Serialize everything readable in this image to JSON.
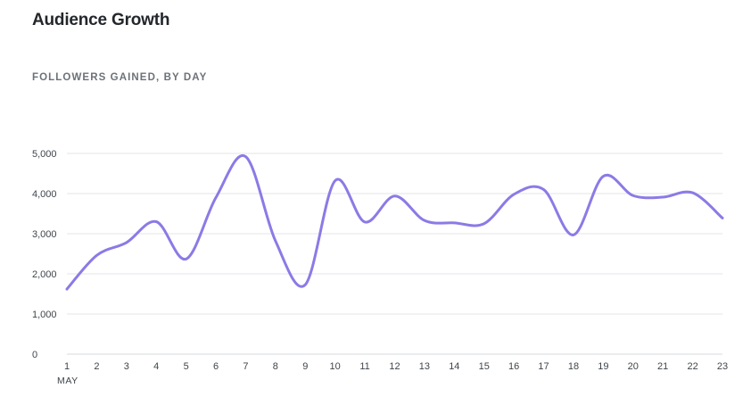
{
  "header": {
    "title": "Audience Growth",
    "subtitle": "FOLLOWERS GAINED, BY DAY"
  },
  "chart_data": {
    "type": "line",
    "title": "FOLLOWERS GAINED, BY DAY",
    "x": [
      1,
      2,
      3,
      4,
      5,
      6,
      7,
      8,
      9,
      10,
      11,
      12,
      13,
      14,
      15,
      16,
      17,
      18,
      19,
      20,
      21,
      22,
      23
    ],
    "x_tick_labels": [
      "1",
      "2",
      "3",
      "4",
      "5",
      "6",
      "7",
      "8",
      "9",
      "10",
      "11",
      "12",
      "13",
      "14",
      "15",
      "16",
      "17",
      "18",
      "19",
      "20",
      "21",
      "22",
      "23"
    ],
    "x_month_label": "MAY",
    "y_ticks": [
      0,
      1000,
      2000,
      3000,
      4000,
      5000
    ],
    "y_tick_labels": [
      "0",
      "1,000",
      "2,000",
      "3,000",
      "4,000",
      "5,000"
    ],
    "ylim": [
      0,
      5000
    ],
    "grid": true,
    "series": [
      {
        "values": [
          1620,
          2460,
          2780,
          3300,
          2370,
          3900,
          4920,
          2820,
          1730,
          4320,
          3290,
          3940,
          3330,
          3270,
          3250,
          3980,
          4100,
          2970,
          4430,
          3950,
          3910,
          4020,
          3390
        ],
        "color": "#8c7ae6"
      }
    ]
  }
}
